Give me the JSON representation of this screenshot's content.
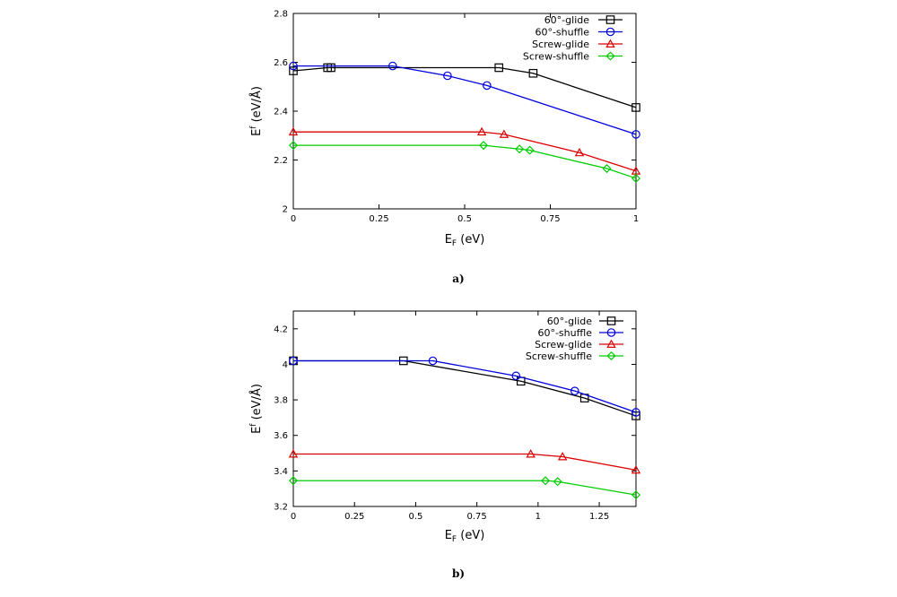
{
  "chart_data": [
    {
      "type": "line",
      "panel_label": "a)",
      "xlabel_main": "E",
      "xlabel_sub": "F",
      "xlabel_rest": " (eV)",
      "ylabel_main": "E",
      "ylabel_sup": "f",
      "ylabel_rest": " (eV/Å)",
      "xlim": [
        0,
        1
      ],
      "ylim": [
        2,
        2.8
      ],
      "xticks": [
        0,
        0.25,
        0.5,
        0.75,
        1
      ],
      "xtick_labels": [
        "0",
        "0.25",
        "0.5",
        "0.75",
        "1"
      ],
      "yticks": [
        2,
        2.2,
        2.4,
        2.6,
        2.8
      ],
      "ytick_labels": [
        "2",
        "2.2",
        "2.4",
        "2.6",
        "2.8"
      ],
      "legend_position": "top-right",
      "series": [
        {
          "name": "60°-glide",
          "color": "#000000",
          "marker": "square",
          "x": [
            0,
            0.1,
            0.11,
            0.6,
            0.7,
            1.0
          ],
          "y": [
            2.565,
            2.578,
            2.578,
            2.578,
            2.555,
            2.415
          ]
        },
        {
          "name": "60°-shuffle",
          "color": "#0000dd",
          "marker": "circle",
          "x": [
            0,
            0.29,
            0.45,
            0.565,
            1.0
          ],
          "y": [
            2.585,
            2.585,
            2.545,
            2.505,
            2.305
          ]
        },
        {
          "name": "Screw-glide",
          "color": "#dd0000",
          "marker": "triangle",
          "x": [
            0,
            0.55,
            0.615,
            0.835,
            1.0
          ],
          "y": [
            2.315,
            2.315,
            2.305,
            2.23,
            2.155
          ]
        },
        {
          "name": "Screw-shuffle",
          "color": "#00cc00",
          "marker": "diamond",
          "x": [
            0,
            0.555,
            0.66,
            0.69,
            0.915,
            1.0
          ],
          "y": [
            2.26,
            2.26,
            2.245,
            2.24,
            2.165,
            2.125
          ]
        }
      ]
    },
    {
      "type": "line",
      "panel_label": "b)",
      "xlabel_main": "E",
      "xlabel_sub": "F",
      "xlabel_rest": " (eV)",
      "ylabel_main": "E",
      "ylabel_sup": "f",
      "ylabel_rest": " (eV/Å)",
      "xlim": [
        0,
        1.4
      ],
      "ylim": [
        3.2,
        4.3
      ],
      "xticks": [
        0,
        0.25,
        0.5,
        0.75,
        1,
        1.25
      ],
      "xtick_labels": [
        "0",
        "0.25",
        "0.5",
        "0.75",
        "1",
        "1.25"
      ],
      "yticks": [
        3.2,
        3.4,
        3.6,
        3.8,
        4,
        4.2
      ],
      "ytick_labels": [
        "3.2",
        "3.4",
        "3.6",
        "3.8",
        "4",
        "4.2"
      ],
      "legend_position": "top-right",
      "series": [
        {
          "name": "60°-glide",
          "color": "#000000",
          "marker": "square",
          "x": [
            0,
            0.45,
            0.93,
            1.19,
            1.4
          ],
          "y": [
            4.02,
            4.02,
            3.905,
            3.81,
            3.71
          ]
        },
        {
          "name": "60°-shuffle",
          "color": "#0000dd",
          "marker": "circle",
          "x": [
            0,
            0.57,
            0.91,
            1.15,
            1.4
          ],
          "y": [
            4.02,
            4.02,
            3.935,
            3.85,
            3.73
          ]
        },
        {
          "name": "Screw-glide",
          "color": "#dd0000",
          "marker": "triangle",
          "x": [
            0,
            0.97,
            1.1,
            1.4
          ],
          "y": [
            3.495,
            3.495,
            3.48,
            3.405
          ]
        },
        {
          "name": "Screw-shuffle",
          "color": "#00cc00",
          "marker": "diamond",
          "x": [
            0,
            1.03,
            1.08,
            1.4
          ],
          "y": [
            3.345,
            3.345,
            3.34,
            3.265
          ]
        }
      ]
    }
  ]
}
